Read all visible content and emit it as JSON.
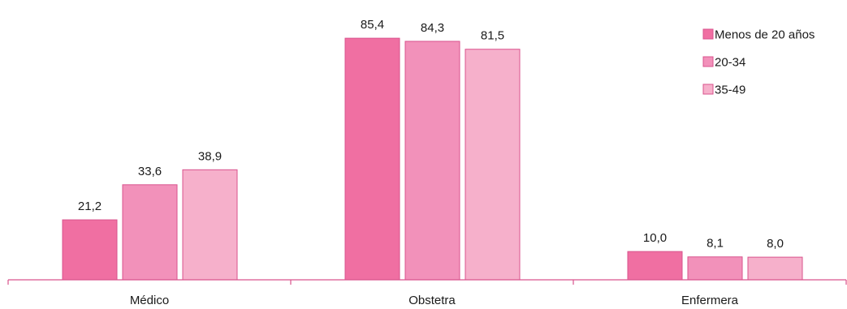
{
  "chart_data": {
    "type": "bar",
    "title": "",
    "xlabel": "",
    "ylabel": "",
    "ylim": [
      0,
      90
    ],
    "grid": false,
    "legend_position": "top-right",
    "categories": [
      "Médico",
      "Obstetra",
      "Enfermera"
    ],
    "series": [
      {
        "name": "Menos de 20 años",
        "color": "#f06fa2",
        "values": [
          21.2,
          85.4,
          10.0
        ],
        "labels": [
          "21,2",
          "85,4",
          "10,0"
        ]
      },
      {
        "name": "20-34",
        "color": "#f291ba",
        "values": [
          33.6,
          84.3,
          8.1
        ],
        "labels": [
          "33,6",
          "84,3",
          "8,1"
        ]
      },
      {
        "name": "35-49",
        "color": "#f6b0cb",
        "values": [
          38.9,
          81.5,
          8.0
        ],
        "labels": [
          "38,9",
          "81,5",
          "8,0"
        ]
      }
    ],
    "axis_color": "#d9538d"
  }
}
